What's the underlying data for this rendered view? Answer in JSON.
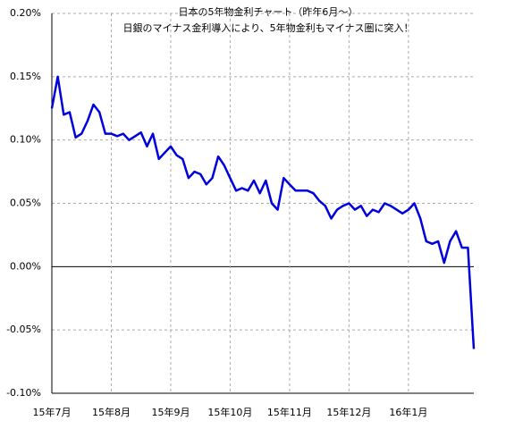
{
  "chart_data": {
    "type": "line",
    "title": "日本の5年物金利チャート（昨年6月～）",
    "subtitle": "日銀のマイナス金利導入により、5年物金利もマイナス圏に突入！",
    "categories": [
      "15年7月",
      null,
      null,
      null,
      null,
      null,
      null,
      null,
      null,
      null,
      "15年8月",
      null,
      null,
      null,
      null,
      null,
      null,
      null,
      null,
      null,
      "15年9月",
      null,
      null,
      null,
      null,
      null,
      null,
      null,
      null,
      null,
      "15年10月",
      null,
      null,
      null,
      null,
      null,
      null,
      null,
      null,
      null,
      "15年11月",
      null,
      null,
      null,
      null,
      null,
      null,
      null,
      null,
      null,
      "15年12月",
      null,
      null,
      null,
      null,
      null,
      null,
      null,
      null,
      null,
      "16年1月",
      null,
      null,
      null,
      null,
      null,
      null,
      null,
      null,
      null,
      null,
      null
    ],
    "series": [
      {
        "color": "#0000dd",
        "values": [
          0.125,
          0.15,
          0.12,
          0.122,
          0.102,
          0.105,
          0.115,
          0.128,
          0.122,
          0.105,
          0.105,
          0.103,
          0.105,
          0.1,
          0.103,
          0.106,
          0.095,
          0.105,
          0.085,
          0.09,
          0.095,
          0.088,
          0.085,
          0.07,
          0.075,
          0.073,
          0.065,
          0.07,
          0.087,
          0.08,
          0.07,
          0.06,
          0.062,
          0.06,
          0.068,
          0.058,
          0.068,
          0.05,
          0.045,
          0.07,
          0.065,
          0.06,
          0.06,
          0.06,
          0.058,
          0.052,
          0.048,
          0.038,
          0.045,
          0.048,
          0.05,
          0.045,
          0.048,
          0.04,
          0.045,
          0.043,
          0.05,
          0.048,
          0.045,
          0.042,
          0.045,
          0.05,
          0.038,
          0.02,
          0.018,
          0.02,
          0.003,
          0.02,
          0.028,
          0.015,
          0.015,
          -0.065
        ]
      }
    ],
    "ylim": [
      -0.1,
      0.2
    ],
    "yticks": [
      {
        "value": -0.1,
        "label": "-0.10%"
      },
      {
        "value": -0.05,
        "label": "-0.05%"
      },
      {
        "value": 0,
        "label": "0.00%"
      },
      {
        "value": 0.05,
        "label": "0.05%"
      },
      {
        "value": 0.1,
        "label": "0.10%"
      },
      {
        "value": 0.15,
        "label": "0.15%"
      },
      {
        "value": 0.2,
        "label": "0.20%"
      }
    ],
    "grid": true
  }
}
